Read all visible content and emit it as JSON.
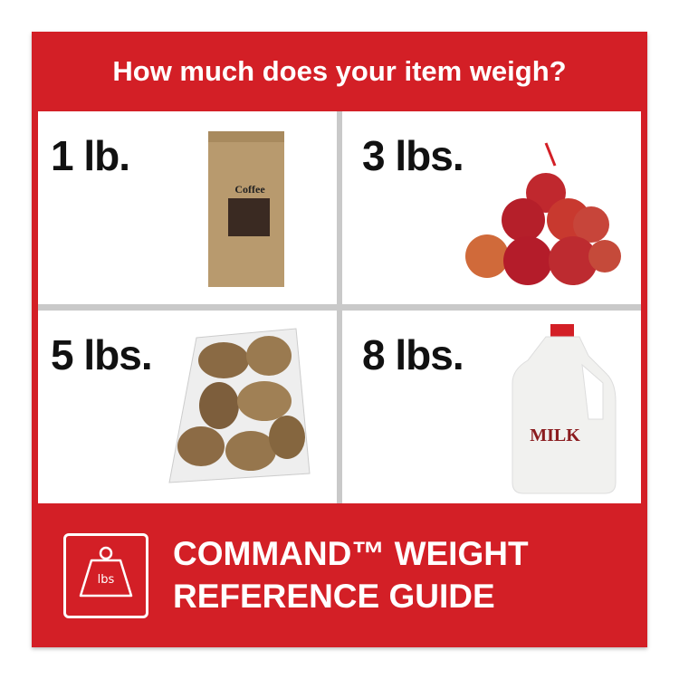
{
  "title": "How much does your item weigh?",
  "items": [
    {
      "weight": "1 lb.",
      "item": "coffee bag",
      "label": "Coffee"
    },
    {
      "weight": "3 lbs.",
      "item": "bag of apples"
    },
    {
      "weight": "5 lbs.",
      "item": "bag of potatoes"
    },
    {
      "weight": "8 lbs.",
      "item": "milk jug",
      "label": "MILK"
    }
  ],
  "footer": {
    "icon": "weight-icon",
    "icon_label": "lbs",
    "line1": "COMMAND™ WEIGHT",
    "line2": "REFERENCE GUIDE"
  },
  "colors": {
    "brand_red": "#d31f26"
  }
}
